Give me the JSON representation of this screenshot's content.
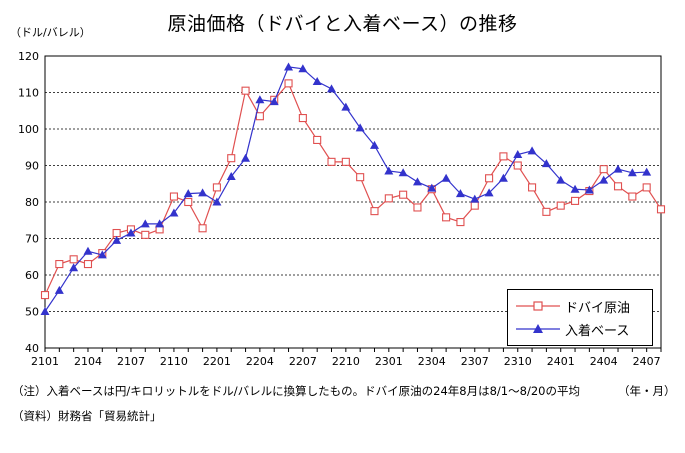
{
  "chart_data": {
    "type": "line",
    "title": "原油価格（ドバイと入着ベース）の推移",
    "ylabel": "（ドル/バレル）",
    "xlabel": "（年・月）",
    "ylim": [
      40,
      120
    ],
    "y_ticks": [
      "40",
      "50",
      "60",
      "70",
      "80",
      "90",
      "100",
      "110",
      "120"
    ],
    "x_ticks": [
      "2101",
      "2104",
      "2107",
      "2110",
      "2201",
      "2204",
      "2207",
      "2210",
      "2301",
      "2304",
      "2307",
      "2310",
      "2401",
      "2404",
      "2407"
    ],
    "x": [
      "2101",
      "2102",
      "2103",
      "2104",
      "2105",
      "2106",
      "2107",
      "2108",
      "2109",
      "2110",
      "2111",
      "2112",
      "2201",
      "2202",
      "2203",
      "2204",
      "2205",
      "2206",
      "2207",
      "2208",
      "2209",
      "2210",
      "2211",
      "2212",
      "2301",
      "2302",
      "2303",
      "2304",
      "2305",
      "2306",
      "2307",
      "2308",
      "2309",
      "2310",
      "2311",
      "2312",
      "2401",
      "2402",
      "2403",
      "2404",
      "2405",
      "2406",
      "2407",
      "2408"
    ],
    "series": [
      {
        "name": "ドバイ原油",
        "color": "#e05050",
        "marker": "square-open",
        "values": [
          54.5,
          63.0,
          64.3,
          63.0,
          66.0,
          71.5,
          72.5,
          71.0,
          72.5,
          81.5,
          80.0,
          72.8,
          84.0,
          92.0,
          110.5,
          103.5,
          108.0,
          112.5,
          103.0,
          97.0,
          91.0,
          91.0,
          86.8,
          77.5,
          81.0,
          82.0,
          78.5,
          83.5,
          75.8,
          74.5,
          79.0,
          86.5,
          92.5,
          90.0,
          84.0,
          77.3,
          79.0,
          80.3,
          83.0,
          89.0,
          84.3,
          81.5,
          84.0,
          78.0
        ]
      },
      {
        "name": "入着ベース",
        "color": "#3333cc",
        "marker": "triangle",
        "values": [
          50.0,
          55.8,
          62.0,
          66.5,
          65.5,
          69.5,
          71.5,
          74.0,
          74.0,
          77.0,
          82.3,
          82.5,
          80.0,
          87.0,
          92.0,
          108.0,
          107.5,
          117.0,
          116.5,
          113.0,
          111.0,
          106.0,
          100.3,
          95.5,
          88.5,
          88.0,
          85.5,
          83.8,
          86.5,
          82.3,
          80.8,
          82.5,
          86.5,
          93.0,
          94.0,
          90.5,
          86.0,
          83.5,
          83.3,
          86.0,
          89.0,
          88.0,
          88.2,
          null
        ]
      }
    ],
    "grid": true,
    "legend_position": "bottom-right"
  },
  "notes": {
    "note": "（注）入着ベースは円/キロリットルをドル/バレルに換算したもの。ドバイ原油の24年8月は8/1～8/20の平均",
    "period": "（年・月）",
    "source": "（資料）財務省「貿易統計」"
  }
}
